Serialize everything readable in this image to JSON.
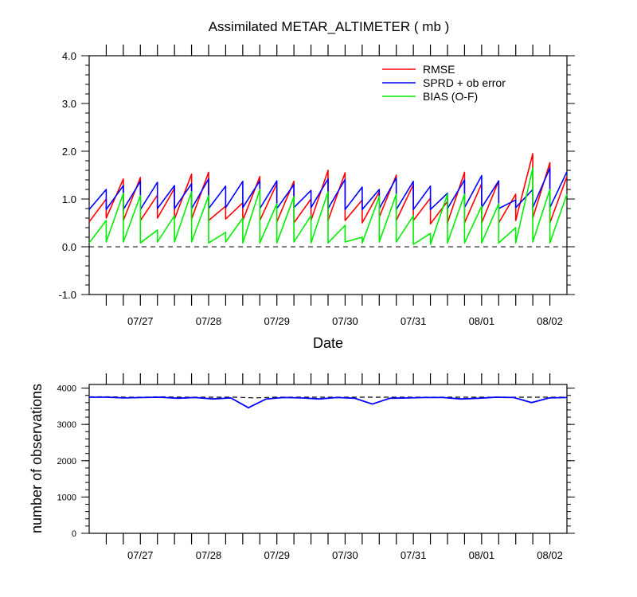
{
  "chart_data": [
    {
      "type": "line",
      "title": "Assimilated METAR_ALTIMETER ( mb )",
      "xlabel": "Date",
      "ylabel": "",
      "ylim": [
        -1.0,
        4.0
      ],
      "xlim": [
        "07/26 06Z",
        "08/02 12Z"
      ],
      "x_tick_labels": [
        "07/27",
        "07/28",
        "07/29",
        "07/30",
        "07/31",
        "08/01",
        "08/02"
      ],
      "y_tick_labels": [
        "-1.0",
        "0.0",
        "1.0",
        "2.0",
        "3.0",
        "4.0"
      ],
      "legend_placement": "top-right",
      "series": [
        {
          "name": "RMSE",
          "color": "#ff0000",
          "points": [
            [
              0,
              0.52
            ],
            [
              1,
              1.0
            ],
            [
              1,
              0.6
            ],
            [
              2,
              1.42
            ],
            [
              2,
              0.55
            ],
            [
              3,
              1.45
            ],
            [
              3,
              0.55
            ],
            [
              4,
              1.08
            ],
            [
              4,
              0.6
            ],
            [
              5,
              1.22
            ],
            [
              5,
              0.58
            ],
            [
              6,
              1.52
            ],
            [
              6,
              0.58
            ],
            [
              7,
              1.56
            ],
            [
              7,
              0.55
            ],
            [
              8,
              0.85
            ],
            [
              8,
              0.58
            ],
            [
              9,
              0.92
            ],
            [
              9,
              0.55
            ],
            [
              10,
              1.47
            ],
            [
              10,
              0.55
            ],
            [
              11,
              1.32
            ],
            [
              11,
              0.52
            ],
            [
              12,
              1.37
            ],
            [
              12,
              0.5
            ],
            [
              13,
              1.0
            ],
            [
              13,
              0.55
            ],
            [
              14,
              1.6
            ],
            [
              14,
              0.55
            ],
            [
              15,
              1.55
            ],
            [
              15,
              0.55
            ],
            [
              16,
              0.98
            ],
            [
              16,
              0.5
            ],
            [
              17,
              1.15
            ],
            [
              17,
              0.62
            ],
            [
              18,
              1.5
            ],
            [
              18,
              0.55
            ],
            [
              19,
              1.3
            ],
            [
              19,
              0.55
            ],
            [
              20,
              1.02
            ],
            [
              20,
              0.48
            ],
            [
              21,
              0.95
            ],
            [
              21,
              0.5
            ],
            [
              22,
              1.56
            ],
            [
              22,
              0.5
            ],
            [
              23,
              1.32
            ],
            [
              23,
              0.5
            ],
            [
              24,
              1.38
            ],
            [
              24,
              0.5
            ],
            [
              25,
              1.1
            ],
            [
              25,
              0.55
            ],
            [
              26,
              1.95
            ],
            [
              26,
              0.6
            ],
            [
              27,
              1.76
            ],
            [
              27,
              0.5
            ],
            [
              28,
              1.47
            ]
          ]
        },
        {
          "name": "SPRD + ob error",
          "color": "#0000ff",
          "points": [
            [
              0,
              0.78
            ],
            [
              1,
              1.2
            ],
            [
              1,
              0.78
            ],
            [
              2,
              1.28
            ],
            [
              2,
              0.78
            ],
            [
              3,
              1.37
            ],
            [
              3,
              0.78
            ],
            [
              4,
              1.35
            ],
            [
              4,
              0.8
            ],
            [
              5,
              1.28
            ],
            [
              5,
              0.8
            ],
            [
              6,
              1.32
            ],
            [
              6,
              0.8
            ],
            [
              7,
              1.42
            ],
            [
              7,
              0.8
            ],
            [
              8,
              1.27
            ],
            [
              8,
              0.82
            ],
            [
              9,
              1.37
            ],
            [
              9,
              0.82
            ],
            [
              10,
              1.38
            ],
            [
              10,
              0.8
            ],
            [
              11,
              1.38
            ],
            [
              11,
              0.8
            ],
            [
              12,
              1.3
            ],
            [
              12,
              0.82
            ],
            [
              13,
              1.18
            ],
            [
              13,
              0.82
            ],
            [
              14,
              1.42
            ],
            [
              14,
              0.8
            ],
            [
              15,
              1.41
            ],
            [
              15,
              0.78
            ],
            [
              16,
              1.25
            ],
            [
              16,
              0.78
            ],
            [
              17,
              1.2
            ],
            [
              17,
              0.8
            ],
            [
              18,
              1.44
            ],
            [
              18,
              0.78
            ],
            [
              19,
              1.37
            ],
            [
              19,
              0.78
            ],
            [
              20,
              1.27
            ],
            [
              20,
              0.78
            ],
            [
              21,
              1.12
            ],
            [
              21,
              0.8
            ],
            [
              22,
              1.4
            ],
            [
              22,
              0.82
            ],
            [
              23,
              1.49
            ],
            [
              23,
              0.82
            ],
            [
              24,
              1.38
            ],
            [
              24,
              0.8
            ],
            [
              25,
              0.98
            ],
            [
              25,
              0.82
            ],
            [
              26,
              1.2
            ],
            [
              26,
              0.82
            ],
            [
              27,
              1.65
            ],
            [
              27,
              0.82
            ],
            [
              28,
              1.57
            ]
          ]
        },
        {
          "name": "BIAS (O-F)",
          "color": "#00ee00",
          "points": [
            [
              0,
              0.08
            ],
            [
              1,
              0.55
            ],
            [
              1,
              0.1
            ],
            [
              2,
              1.12
            ],
            [
              2,
              0.1
            ],
            [
              3,
              1.07
            ],
            [
              3,
              0.08
            ],
            [
              4,
              0.35
            ],
            [
              4,
              0.1
            ],
            [
              5,
              0.65
            ],
            [
              5,
              0.1
            ],
            [
              6,
              1.15
            ],
            [
              6,
              0.1
            ],
            [
              7,
              1.07
            ],
            [
              7,
              0.08
            ],
            [
              8,
              0.3
            ],
            [
              8,
              0.1
            ],
            [
              9,
              0.6
            ],
            [
              9,
              0.08
            ],
            [
              10,
              1.2
            ],
            [
              10,
              0.08
            ],
            [
              11,
              0.9
            ],
            [
              11,
              0.08
            ],
            [
              12,
              1.05
            ],
            [
              12,
              0.1
            ],
            [
              13,
              0.65
            ],
            [
              13,
              0.08
            ],
            [
              14,
              1.15
            ],
            [
              14,
              0.08
            ],
            [
              15,
              0.45
            ],
            [
              15,
              0.1
            ],
            [
              16,
              0.2
            ],
            [
              16,
              0.08
            ],
            [
              17,
              1.05
            ],
            [
              17,
              0.1
            ],
            [
              18,
              1.1
            ],
            [
              18,
              0.1
            ],
            [
              19,
              0.65
            ],
            [
              19,
              0.05
            ],
            [
              20,
              0.28
            ],
            [
              20,
              0.05
            ],
            [
              21,
              1.1
            ],
            [
              21,
              0.08
            ],
            [
              22,
              1.1
            ],
            [
              22,
              0.08
            ],
            [
              23,
              0.85
            ],
            [
              23,
              0.08
            ],
            [
              24,
              0.9
            ],
            [
              24,
              0.08
            ],
            [
              25,
              0.4
            ],
            [
              25,
              0.08
            ],
            [
              26,
              1.65
            ],
            [
              26,
              0.1
            ],
            [
              27,
              1.2
            ],
            [
              27,
              0.08
            ],
            [
              28,
              1.1
            ]
          ]
        }
      ],
      "zero_line": 0.0,
      "grid": false
    },
    {
      "type": "line",
      "title": "",
      "xlabel": "",
      "ylabel": "number of observations",
      "ylim": [
        0,
        4100
      ],
      "xlim": [
        "07/26 06Z",
        "08/02 12Z"
      ],
      "x_tick_labels": [
        "07/27",
        "07/28",
        "07/29",
        "07/30",
        "07/31",
        "08/01",
        "08/02"
      ],
      "y_tick_labels": [
        "0",
        "1000",
        "2000",
        "3000",
        "4000"
      ],
      "grid": false,
      "series": [
        {
          "color": "#000000",
          "dashed": true,
          "values": [
            3760,
            3760,
            3750,
            3750,
            3760,
            3750,
            3750,
            3750,
            3750,
            3730,
            3750,
            3750,
            3750,
            3750,
            3750,
            3750,
            3750,
            3750,
            3750,
            3750,
            3750,
            3750,
            3750,
            3750,
            3750,
            3750,
            3750
          ]
        },
        {
          "color": "#0000ff",
          "values": [
            3750,
            3750,
            3730,
            3740,
            3750,
            3720,
            3740,
            3700,
            3730,
            3460,
            3700,
            3740,
            3730,
            3700,
            3740,
            3720,
            3560,
            3720,
            3730,
            3740,
            3740,
            3700,
            3720,
            3750,
            3740,
            3600,
            3730,
            3740
          ]
        }
      ]
    }
  ]
}
